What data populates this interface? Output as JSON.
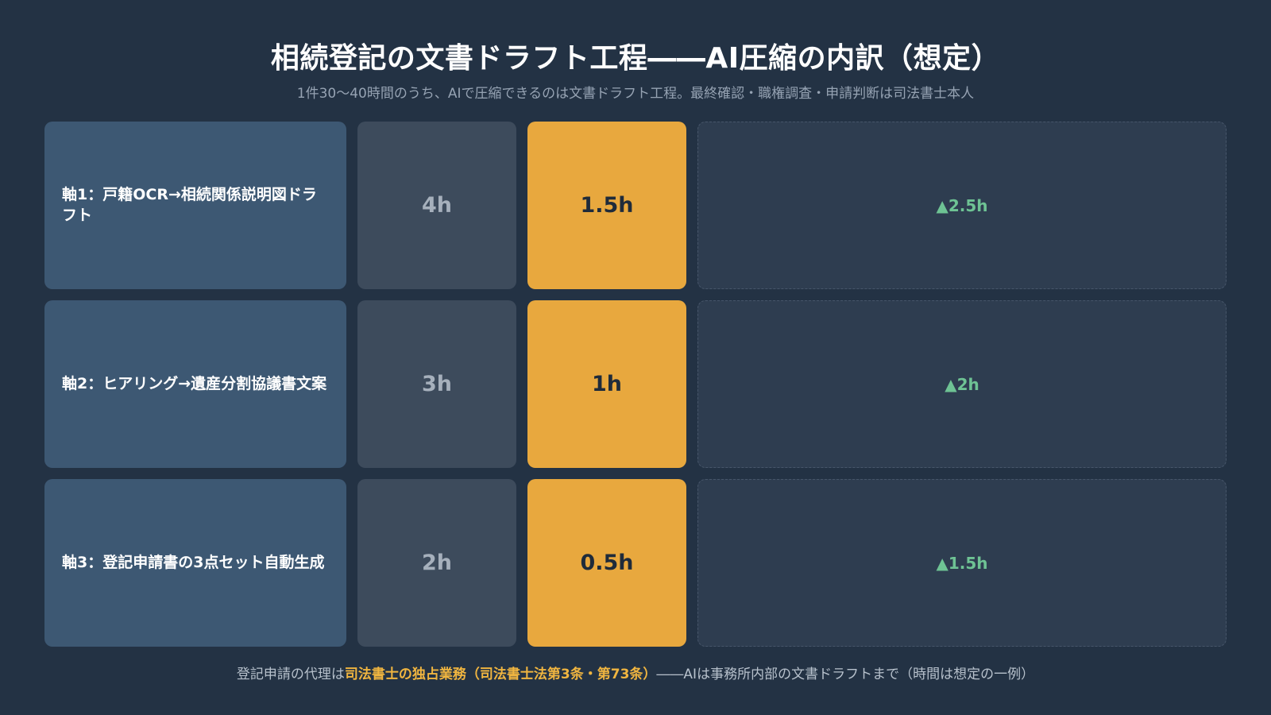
{
  "title": "相続登記の文書ドラフト工程――AI圧縮の内訳（想定）",
  "subtitle": "1件30〜40時間のうち、AIで圧縮できるのは文書ドラフト工程。最終確認・職権調査・申請判断は司法書士本人",
  "rows": [
    {
      "label": "軸1：戸籍OCR→相続関係説明図ドラフト",
      "before": "4h",
      "after": "1.5h",
      "saving": "▲2.5h"
    },
    {
      "label": "軸2：ヒアリング→遺産分割協議書文案",
      "before": "3h",
      "after": "1h",
      "saving": "▲2h"
    },
    {
      "label": "軸3：登記申請書の3点セット自動生成",
      "before": "2h",
      "after": "0.5h",
      "saving": "▲1.5h"
    }
  ],
  "footer": {
    "prefix": "登記申請の代理は",
    "highlight": "司法書士の独占業務（司法書士法第3条・第73条）",
    "suffix": "――AIは事務所内部の文書ドラフトまで（時間は想定の一例）"
  },
  "colors": {
    "background": "#233244",
    "label_cell": "#3d5873",
    "before_cell": "#3d4b5c",
    "after_cell": "#e8a83e",
    "saving_text": "#6ec394",
    "highlight_text": "#f0b540"
  }
}
